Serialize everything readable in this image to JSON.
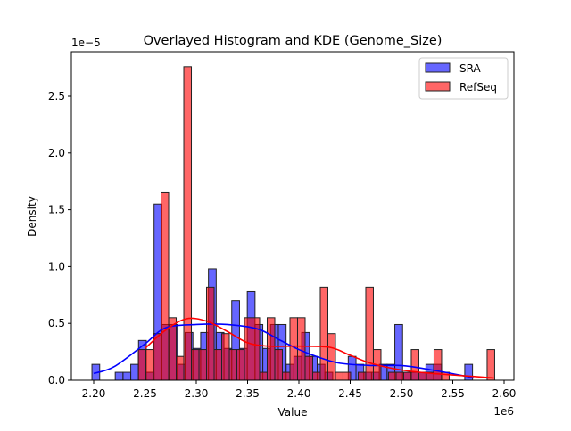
{
  "chart_data": {
    "type": "bar",
    "title": "Overlayed Histogram and KDE (Genome_Size)",
    "xlabel": "Value",
    "ylabel": "Density",
    "x_offset_label": "1e6",
    "y_offset_label": "1e−5",
    "xlim": [
      2.18,
      2.61
    ],
    "ylim": [
      0,
      2.9
    ],
    "xticks": [
      "2.20",
      "2.25",
      "2.30",
      "2.35",
      "2.40",
      "2.45",
      "2.50",
      "2.55",
      "2.60"
    ],
    "xtick_values": [
      2.2,
      2.25,
      2.3,
      2.35,
      2.4,
      2.45,
      2.5,
      2.55,
      2.6
    ],
    "yticks": [
      "0.0",
      "0.5",
      "1.0",
      "1.5",
      "2.0",
      "2.5"
    ],
    "ytick_values": [
      0,
      0.5,
      1.0,
      1.5,
      2.0,
      2.5
    ],
    "legend_position": "top-right",
    "series": [
      {
        "name": "SRA",
        "color": "#0000ff",
        "bin_start": 2.1983,
        "bin_width": 0.00757,
        "values": [
          0.14,
          0,
          0,
          0.07,
          0.07,
          0.14,
          0.35,
          0.07,
          1.55,
          0.49,
          0.49,
          0.14,
          0.42,
          0.28,
          0.42,
          0.98,
          0.42,
          0.28,
          0.7,
          0.28,
          0.78,
          0.49,
          0.28,
          0.49,
          0.49,
          0.14,
          0.21,
          0.42,
          0.21,
          0.14,
          0.07,
          0,
          0,
          0.21,
          0.14,
          0.07,
          0.07,
          0.14,
          0.14,
          0.49,
          0.07,
          0.07,
          0.07,
          0.14,
          0.14,
          0,
          0,
          0,
          0.14
        ],
        "kde": [
          [
            2.2,
            0.06
          ],
          [
            2.22,
            0.12
          ],
          [
            2.25,
            0.32
          ],
          [
            2.27,
            0.46
          ],
          [
            2.3,
            0.49
          ],
          [
            2.33,
            0.49
          ],
          [
            2.36,
            0.45
          ],
          [
            2.38,
            0.36
          ],
          [
            2.4,
            0.27
          ],
          [
            2.42,
            0.2
          ],
          [
            2.44,
            0.15
          ],
          [
            2.47,
            0.13
          ],
          [
            2.5,
            0.13
          ],
          [
            2.53,
            0.09
          ],
          [
            2.56,
            0.04
          ],
          [
            2.57,
            0.02
          ]
        ]
      },
      {
        "name": "RefSeq",
        "color": "#ff0000",
        "bin_start": 2.2435,
        "bin_width": 0.00739,
        "values": [
          0.27,
          0.27,
          0.41,
          1.65,
          0.55,
          0.21,
          2.76,
          0.27,
          0.27,
          0.82,
          0.27,
          0.41,
          0.27,
          0.27,
          0.55,
          0.55,
          0.07,
          0.55,
          0.27,
          0.07,
          0.55,
          0.55,
          0.21,
          0.07,
          0.82,
          0.41,
          0.07,
          0.07,
          0,
          0.07,
          0.82,
          0.27,
          0,
          0.07,
          0.07,
          0.07,
          0.27,
          0.07,
          0.07,
          0.27,
          0.07,
          0,
          0,
          0,
          0,
          0,
          0.27
        ],
        "kde": [
          [
            2.25,
            0.28
          ],
          [
            2.27,
            0.44
          ],
          [
            2.29,
            0.54
          ],
          [
            2.31,
            0.52
          ],
          [
            2.33,
            0.43
          ],
          [
            2.35,
            0.33
          ],
          [
            2.37,
            0.3
          ],
          [
            2.4,
            0.3
          ],
          [
            2.43,
            0.29
          ],
          [
            2.45,
            0.22
          ],
          [
            2.47,
            0.15
          ],
          [
            2.5,
            0.09
          ],
          [
            2.53,
            0.06
          ],
          [
            2.56,
            0.04
          ],
          [
            2.59,
            0.02
          ]
        ]
      }
    ]
  }
}
